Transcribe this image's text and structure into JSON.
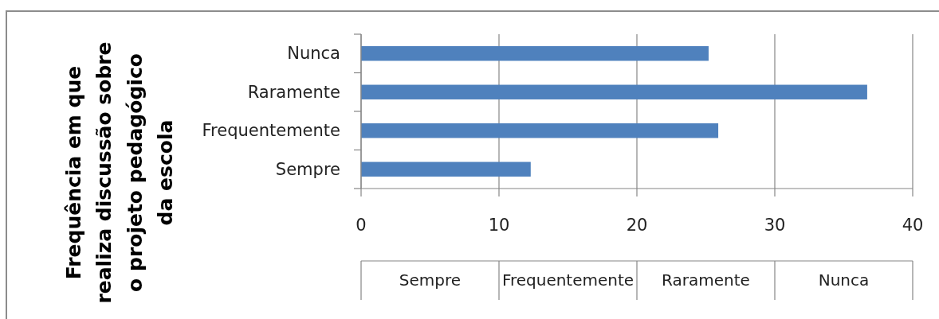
{
  "chart_data": {
    "type": "bar",
    "orientation": "horizontal",
    "ylabel": "Frequência em que\nrealiza discussão sobre\no projeto pedagógico\nda escola",
    "categories": [
      "Nunca",
      "Raramente",
      "Frequentemente",
      "Sempre"
    ],
    "values": [
      25.2,
      36.7,
      25.9,
      12.3
    ],
    "color": "#4f81bd",
    "xlim": [
      0,
      40
    ],
    "xticks": [
      0,
      10,
      20,
      30,
      40
    ],
    "grid": "x"
  }
}
